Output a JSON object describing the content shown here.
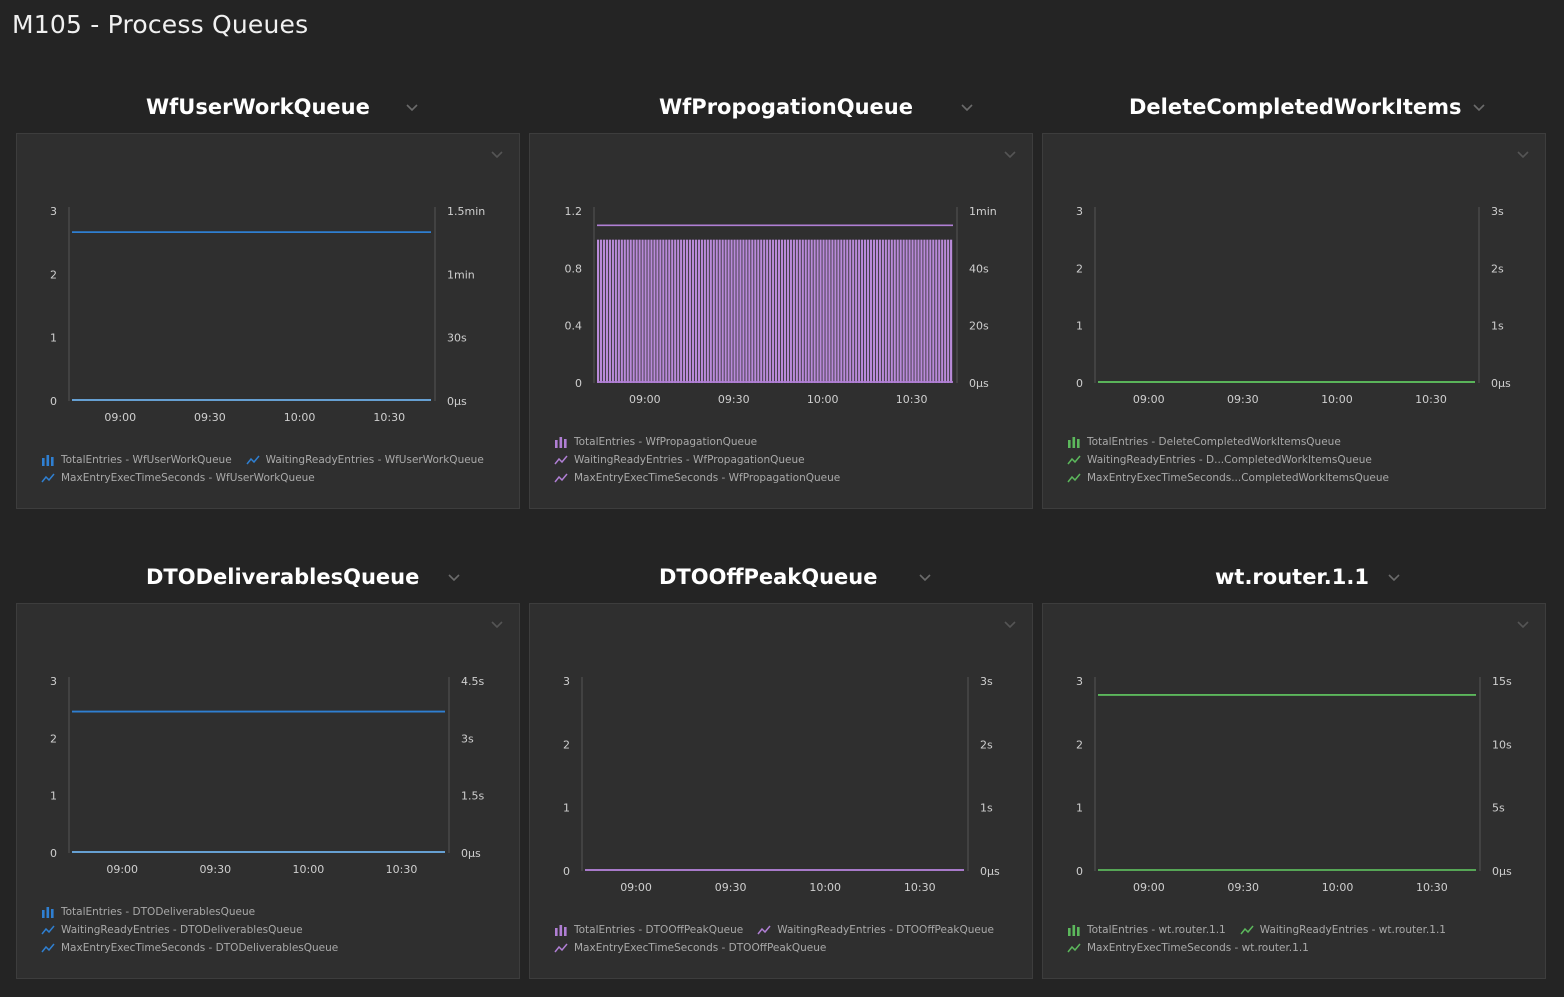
{
  "dashboard": {
    "title": "M105 - Process Queues"
  },
  "tiles": [
    {
      "title": "WfUserWorkQueue",
      "color": "#2f7fd1",
      "chart_data": {
        "type": "line",
        "x_ticks": [
          "09:00",
          "09:30",
          "10:00",
          "10:30"
        ],
        "y_left_ticks": [
          "0",
          "1",
          "2",
          "3"
        ],
        "y_left_range": [
          0,
          3
        ],
        "y_right_ticks": [
          "0µs",
          "30s",
          "1min",
          "1.5min"
        ],
        "y_right_range": [
          0,
          90
        ],
        "y_right_unit": "s",
        "series": [
          {
            "name": "TotalEntries - WfUserWorkQueue",
            "kind": "bar",
            "axis": "left",
            "values": [
              0
            ]
          },
          {
            "name": "WaitingReadyEntries - WfUserWorkQueue",
            "kind": "line",
            "axis": "left",
            "values": [
              0
            ]
          },
          {
            "name": "MaxEntryExecTimeSeconds - WfUserWorkQueue",
            "kind": "line",
            "axis": "right",
            "values": [
              80
            ]
          }
        ]
      },
      "legend_rows": [
        [
          {
            "icon": "bar",
            "label": "TotalEntries - WfUserWorkQueue"
          },
          {
            "icon": "line",
            "label": "WaitingReadyEntries - WfUserWorkQueue"
          }
        ],
        [
          {
            "icon": "line",
            "label": "MaxEntryExecTimeSeconds - WfUserWorkQueue"
          }
        ]
      ]
    },
    {
      "title": "WfPropogationQueue",
      "color": "#b07fd4",
      "chart_data": {
        "type": "bar",
        "x_ticks": [
          "09:00",
          "09:30",
          "10:00",
          "10:30"
        ],
        "y_left_ticks": [
          "0",
          "0.4",
          "0.8",
          "1.2"
        ],
        "y_left_range": [
          0,
          1.2
        ],
        "y_right_ticks": [
          "0µs",
          "20s",
          "40s",
          "1min"
        ],
        "y_right_range": [
          0,
          60
        ],
        "y_right_unit": "s",
        "series": [
          {
            "name": "TotalEntries - WfPropagationQueue",
            "kind": "bar",
            "axis": "left",
            "values": [
              1
            ],
            "count": 120
          },
          {
            "name": "WaitingReadyEntries - WfPropagationQueue",
            "kind": "line",
            "axis": "left",
            "values": [
              0
            ]
          },
          {
            "name": "MaxEntryExecTimeSeconds - WfPropagationQueue",
            "kind": "line",
            "axis": "right",
            "values": [
              55
            ]
          }
        ]
      },
      "legend_rows": [
        [
          {
            "icon": "bar",
            "label": "TotalEntries - WfPropagationQueue"
          }
        ],
        [
          {
            "icon": "line",
            "label": "WaitingReadyEntries - WfPropagationQueue"
          }
        ],
        [
          {
            "icon": "line",
            "label": "MaxEntryExecTimeSeconds - WfPropagationQueue"
          }
        ]
      ]
    },
    {
      "title": "DeleteCompletedWorkItems",
      "color": "#5cb85c",
      "chart_data": {
        "type": "line",
        "x_ticks": [
          "09:00",
          "09:30",
          "10:00",
          "10:30"
        ],
        "y_left_ticks": [
          "0",
          "1",
          "2",
          "3"
        ],
        "y_left_range": [
          0,
          3
        ],
        "y_right_ticks": [
          "0µs",
          "1s",
          "2s",
          "3s"
        ],
        "y_right_range": [
          0,
          3
        ],
        "y_right_unit": "s",
        "series": [
          {
            "name": "TotalEntries - DeleteCompletedWorkItemsQueue",
            "kind": "bar",
            "axis": "left",
            "values": [
              0
            ]
          },
          {
            "name": "WaitingReadyEntries - D...CompletedWorkItemsQueue",
            "kind": "line",
            "axis": "left",
            "values": [
              0
            ]
          },
          {
            "name": "MaxEntryExecTimeSeconds...CompletedWorkItemsQueue",
            "kind": "line",
            "axis": "right",
            "values": [
              0
            ]
          }
        ]
      },
      "legend_rows": [
        [
          {
            "icon": "bar",
            "label": "TotalEntries - DeleteCompletedWorkItemsQueue"
          }
        ],
        [
          {
            "icon": "line",
            "label": "WaitingReadyEntries - D...CompletedWorkItemsQueue"
          }
        ],
        [
          {
            "icon": "line",
            "label": "MaxEntryExecTimeSeconds...CompletedWorkItemsQueue"
          }
        ]
      ]
    },
    {
      "title": "DTODeliverablesQueue",
      "color": "#2f7fd1",
      "chart_data": {
        "type": "line",
        "x_ticks": [
          "09:00",
          "09:30",
          "10:00",
          "10:30"
        ],
        "y_left_ticks": [
          "0",
          "1",
          "2",
          "3"
        ],
        "y_left_range": [
          0,
          3
        ],
        "y_right_ticks": [
          "0µs",
          "1.5s",
          "3s",
          "4.5s"
        ],
        "y_right_range": [
          0,
          4.5
        ],
        "y_right_unit": "s",
        "series": [
          {
            "name": "TotalEntries - DTODeliverablesQueue",
            "kind": "bar",
            "axis": "left",
            "values": [
              0
            ]
          },
          {
            "name": "WaitingReadyEntries - DTODeliverablesQueue",
            "kind": "line",
            "axis": "left",
            "values": [
              0
            ]
          },
          {
            "name": "MaxEntryExecTimeSeconds - DTODeliverablesQueue",
            "kind": "line",
            "axis": "right",
            "values": [
              3.7
            ]
          }
        ]
      },
      "legend_rows": [
        [
          {
            "icon": "bar",
            "label": "TotalEntries - DTODeliverablesQueue"
          }
        ],
        [
          {
            "icon": "line",
            "label": "WaitingReadyEntries - DTODeliverablesQueue"
          }
        ],
        [
          {
            "icon": "line",
            "label": "MaxEntryExecTimeSeconds - DTODeliverablesQueue"
          }
        ]
      ]
    },
    {
      "title": "DTOOffPeakQueue",
      "color": "#b07fd4",
      "chart_data": {
        "type": "line",
        "x_ticks": [
          "09:00",
          "09:30",
          "10:00",
          "10:30"
        ],
        "y_left_ticks": [
          "0",
          "1",
          "2",
          "3"
        ],
        "y_left_range": [
          0,
          3
        ],
        "y_right_ticks": [
          "0µs",
          "1s",
          "2s",
          "3s"
        ],
        "y_right_range": [
          0,
          3
        ],
        "y_right_unit": "s",
        "series": [
          {
            "name": "TotalEntries - DTOOffPeakQueue",
            "kind": "bar",
            "axis": "left",
            "values": [
              0
            ]
          },
          {
            "name": "WaitingReadyEntries - DTOOffPeakQueue",
            "kind": "line",
            "axis": "left",
            "values": [
              0
            ]
          },
          {
            "name": "MaxEntryExecTimeSeconds - DTOOffPeakQueue",
            "kind": "line",
            "axis": "right",
            "values": [
              0
            ]
          }
        ]
      },
      "legend_rows": [
        [
          {
            "icon": "bar",
            "label": "TotalEntries - DTOOffPeakQueue"
          },
          {
            "icon": "line",
            "label": "WaitingReadyEntries - DTOOffPeakQueue"
          }
        ],
        [
          {
            "icon": "line",
            "label": "MaxEntryExecTimeSeconds - DTOOffPeakQueue"
          }
        ]
      ]
    },
    {
      "title": "wt.router.1.1",
      "color": "#5cb85c",
      "chart_data": {
        "type": "line",
        "x_ticks": [
          "09:00",
          "09:30",
          "10:00",
          "10:30"
        ],
        "y_left_ticks": [
          "0",
          "1",
          "2",
          "3"
        ],
        "y_left_range": [
          0,
          3
        ],
        "y_right_ticks": [
          "0µs",
          "5s",
          "10s",
          "15s"
        ],
        "y_right_range": [
          0,
          15
        ],
        "y_right_unit": "s",
        "series": [
          {
            "name": "TotalEntries - wt.router.1.1",
            "kind": "bar",
            "axis": "left",
            "values": [
              0
            ]
          },
          {
            "name": "WaitingReadyEntries - wt.router.1.1",
            "kind": "line",
            "axis": "left",
            "values": [
              0
            ]
          },
          {
            "name": "MaxEntryExecTimeSeconds - wt.router.1.1",
            "kind": "line",
            "axis": "right",
            "values": [
              13.9
            ]
          }
        ]
      },
      "legend_rows": [
        [
          {
            "icon": "bar",
            "label": "TotalEntries - wt.router.1.1"
          },
          {
            "icon": "line",
            "label": "WaitingReadyEntries - wt.router.1.1"
          }
        ],
        [
          {
            "icon": "line",
            "label": "MaxEntryExecTimeSeconds - wt.router.1.1"
          }
        ]
      ]
    }
  ],
  "icons": {
    "header_menu": "chevron-down-icon",
    "tile_menu": "chevron-down-icon"
  }
}
